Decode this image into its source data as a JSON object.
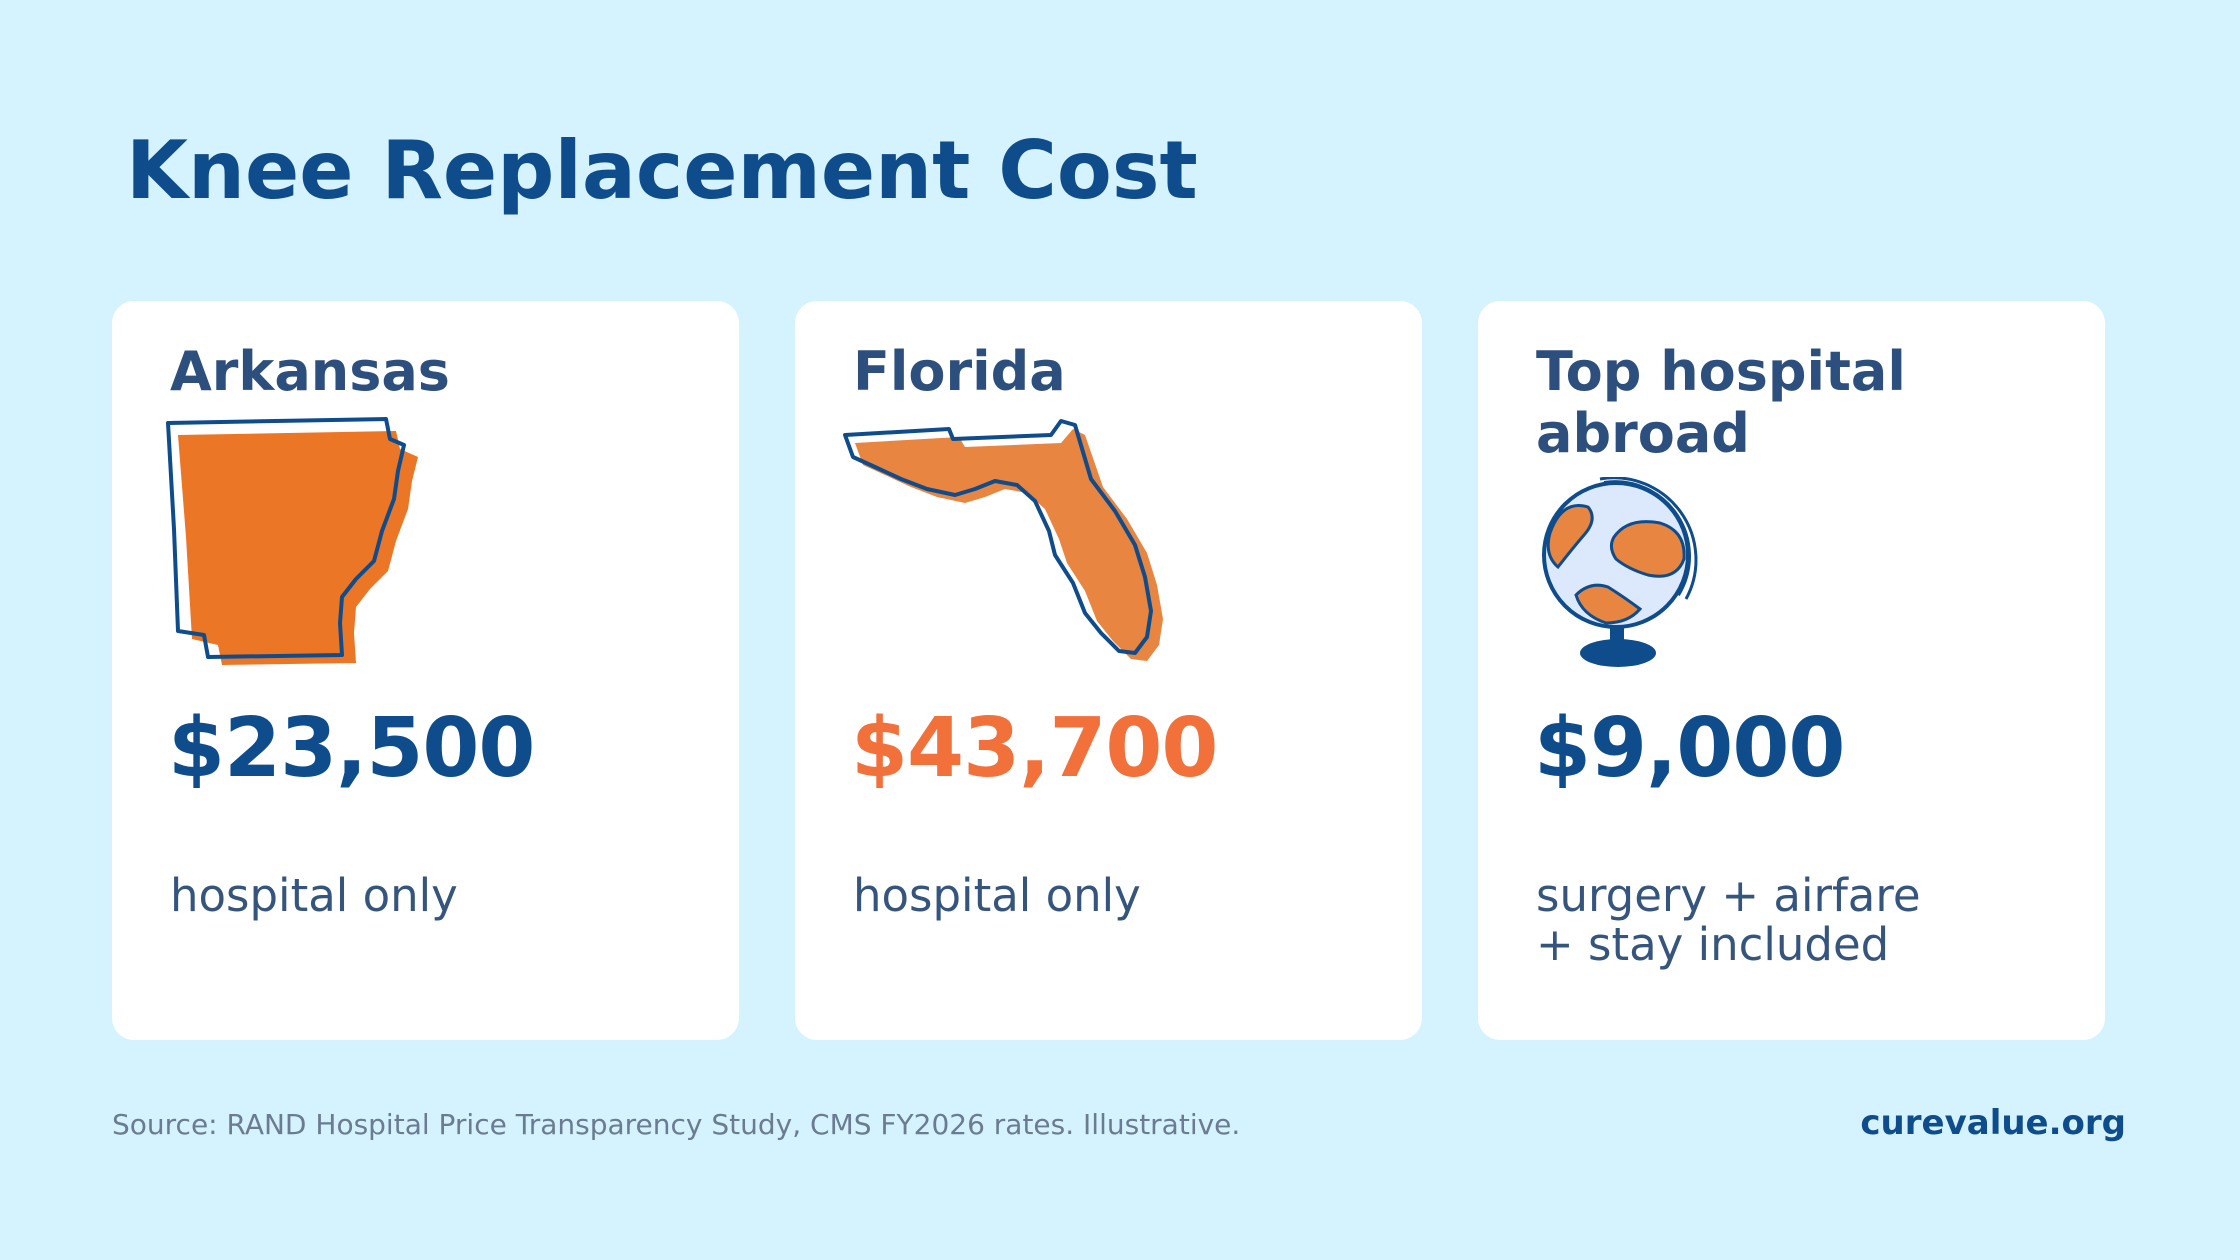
{
  "title": "Knee Replacement Cost",
  "cards": [
    {
      "heading": "Arkansas",
      "price": "$23,500",
      "note": "hospital only",
      "illustration": "arkansas-map-icon"
    },
    {
      "heading": "Florida",
      "price": "$43,700",
      "note": "hospital only",
      "illustration": "florida-map-icon"
    },
    {
      "heading": "Top hospital\nabroad",
      "price": "$9,000",
      "note": "surgery + airfare\n+ stay included",
      "illustration": "globe-icon"
    }
  ],
  "footer": {
    "source": "Source: RAND Hospital Price Transparency Study, CMS FY2026 rates. Illustrative.",
    "site": "curevalue.org"
  },
  "colors": {
    "background": "#d4f3fe",
    "brand_blue": "#0f4c8c",
    "accent_orange": "#f2703a",
    "map_orange": "#eb7625",
    "card": "#ffffff"
  }
}
